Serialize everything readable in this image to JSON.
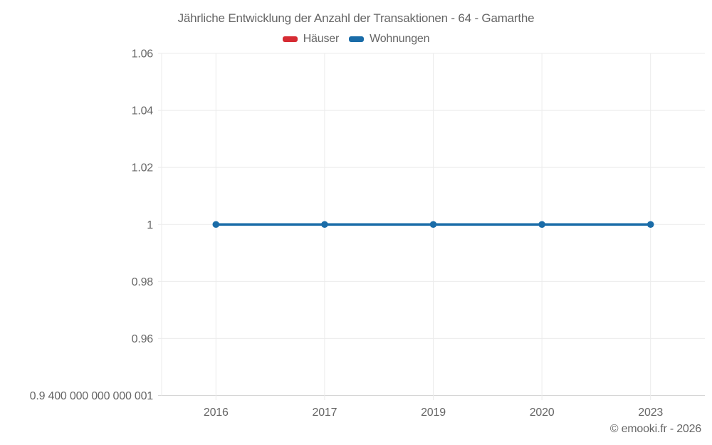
{
  "header": {
    "title": "Jährliche Entwicklung der Anzahl der Transaktionen - 64 - Gamarthe"
  },
  "legend": {
    "items": [
      {
        "label": "Häuser",
        "color": "#d62b33"
      },
      {
        "label": "Wohnungen",
        "color": "#1a6ca8"
      }
    ]
  },
  "footer": {
    "watermark": "© emooki.fr - 2026"
  },
  "chart_data": {
    "type": "line",
    "title": "Jährliche Entwicklung der Anzahl der Transaktionen - 64 - Gamarthe",
    "categories": [
      "2016",
      "2017",
      "2019",
      "2020",
      "2023"
    ],
    "series": [
      {
        "name": "Häuser",
        "color": "#d62b33",
        "values": [
          null,
          null,
          null,
          null,
          null
        ]
      },
      {
        "name": "Wohnungen",
        "color": "#1a6ca8",
        "values": [
          1,
          1,
          1,
          1,
          1
        ]
      }
    ],
    "xlabel": "",
    "ylabel": "",
    "ylim": [
      0.9400000000000001,
      1.06
    ],
    "y_tick_labels": [
      "1.06",
      "1.04",
      "1.02",
      "1",
      "0.98",
      "0.96",
      "0.9 400 000 000 000 001"
    ],
    "y_tick_values": [
      1.06,
      1.04,
      1.02,
      1.0,
      0.98,
      0.96,
      0.9400000000000001
    ],
    "grid": true,
    "legend_position": "top",
    "colors": {
      "grid": "#ebebeb",
      "axis_line": "#d6d6d6",
      "tick_text": "#666666",
      "background": "#ffffff"
    }
  }
}
